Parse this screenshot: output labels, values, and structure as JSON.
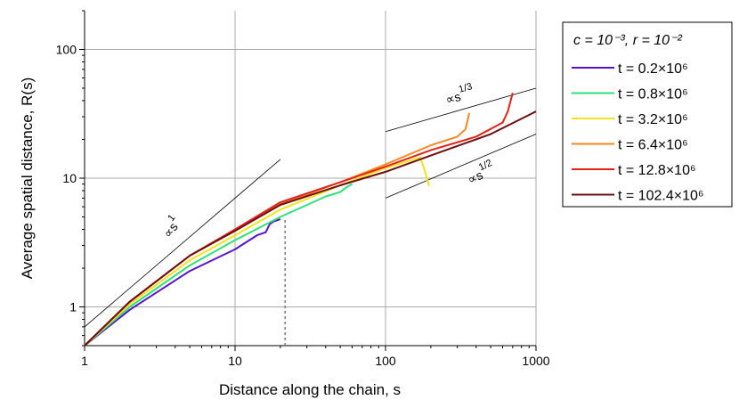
{
  "chart_data": {
    "type": "line",
    "x_label": "Distance along the chain, s",
    "y_label": "Average spatial distance, R(s)",
    "log_x": true,
    "log_y": true,
    "grid": true,
    "xlim": [
      1,
      1000
    ],
    "ylim": [
      0.5,
      200
    ],
    "xticks": [
      1,
      10,
      100,
      1000
    ],
    "yticks": [
      1,
      10,
      100
    ],
    "legend_title": "c = 10⁻³, r = 10⁻²",
    "legend_position": "outside-right",
    "series": [
      {
        "name": "t = 0.2×10⁶",
        "color": "#5a12c8",
        "x": [
          1,
          2,
          5,
          10,
          14,
          16,
          17,
          18,
          20
        ],
        "values": [
          0.5,
          0.95,
          1.9,
          2.8,
          3.6,
          3.8,
          4.4,
          4.6,
          4.8
        ]
      },
      {
        "name": "t = 0.8×10⁶",
        "color": "#2ee07a",
        "x": [
          1,
          2,
          5,
          10,
          20,
          40,
          50,
          55,
          60
        ],
        "values": [
          0.5,
          1.0,
          2.1,
          3.3,
          5.0,
          7.2,
          7.8,
          8.5,
          9.0
        ]
      },
      {
        "name": "t = 3.2×10⁶",
        "color": "#f2e21a",
        "x": [
          1,
          2,
          5,
          10,
          20,
          50,
          100,
          170,
          180,
          195
        ],
        "values": [
          0.5,
          1.05,
          2.3,
          3.6,
          5.7,
          8.8,
          12,
          14.5,
          12,
          8.7
        ]
      },
      {
        "name": "t = 6.4×10⁶",
        "color": "#f7861e",
        "x": [
          1,
          2,
          5,
          10,
          20,
          50,
          100,
          200,
          300,
          340,
          360
        ],
        "values": [
          0.5,
          1.1,
          2.5,
          3.9,
          6.3,
          9.3,
          12.8,
          18,
          21,
          24,
          32
        ]
      },
      {
        "name": "t = 12.8×10⁶",
        "color": "#e4211b",
        "x": [
          1,
          2,
          5,
          10,
          20,
          50,
          100,
          200,
          400,
          600,
          650,
          700
        ],
        "values": [
          0.5,
          1.1,
          2.5,
          4.0,
          6.5,
          9.3,
          12.3,
          16.5,
          21,
          27,
          33,
          46
        ]
      },
      {
        "name": "t = 102.4×10⁶",
        "color": "#6b0f0f",
        "x": [
          1,
          2,
          5,
          10,
          20,
          50,
          100,
          200,
          500,
          900,
          1000
        ],
        "values": [
          0.5,
          1.1,
          2.5,
          3.9,
          6.2,
          8.8,
          11.2,
          15,
          22,
          31,
          33
        ]
      }
    ],
    "reference_lines": [
      {
        "x": [
          1,
          20
        ],
        "y": [
          0.7,
          14
        ]
      },
      {
        "x": [
          100,
          1000
        ],
        "y": [
          23,
          50
        ]
      },
      {
        "x": [
          100,
          1000
        ],
        "y": [
          7,
          22
        ]
      }
    ],
    "dashed_line": {
      "x": [
        21.5,
        21.5
      ],
      "y": [
        0.5,
        4.8
      ]
    },
    "annotations": [
      {
        "text": "∝s",
        "exponent": "1"
      },
      {
        "text": "∝s",
        "exponent": "1/3"
      },
      {
        "text": "∝s",
        "exponent": "1/2"
      }
    ]
  }
}
